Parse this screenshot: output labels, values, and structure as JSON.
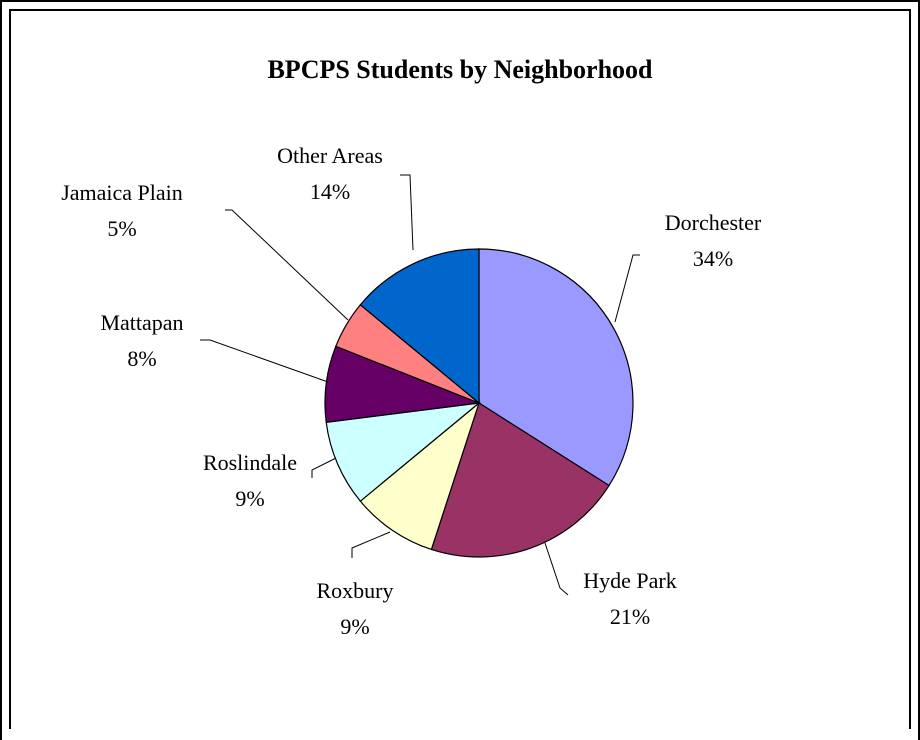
{
  "chart_data": {
    "type": "pie",
    "title": "BPCPS Students by Neighborhood",
    "slices": [
      {
        "label": "Dorchester",
        "value": 34,
        "value_text": "34%",
        "color": "#9999FF"
      },
      {
        "label": "Hyde Park",
        "value": 21,
        "value_text": "21%",
        "color": "#993366"
      },
      {
        "label": "Roxbury",
        "value": 9,
        "value_text": "9%",
        "color": "#FFFFCC"
      },
      {
        "label": "Roslindale",
        "value": 9,
        "value_text": "9%",
        "color": "#CCFFFF"
      },
      {
        "label": "Mattapan",
        "value": 8,
        "value_text": "8%",
        "color": "#660066"
      },
      {
        "label": "Jamaica Plain",
        "value": 5,
        "value_text": "5%",
        "color": "#FF8080"
      },
      {
        "label": "Other Areas",
        "value": 14,
        "value_text": "14%",
        "color": "#0066CC"
      }
    ],
    "legend": false
  }
}
